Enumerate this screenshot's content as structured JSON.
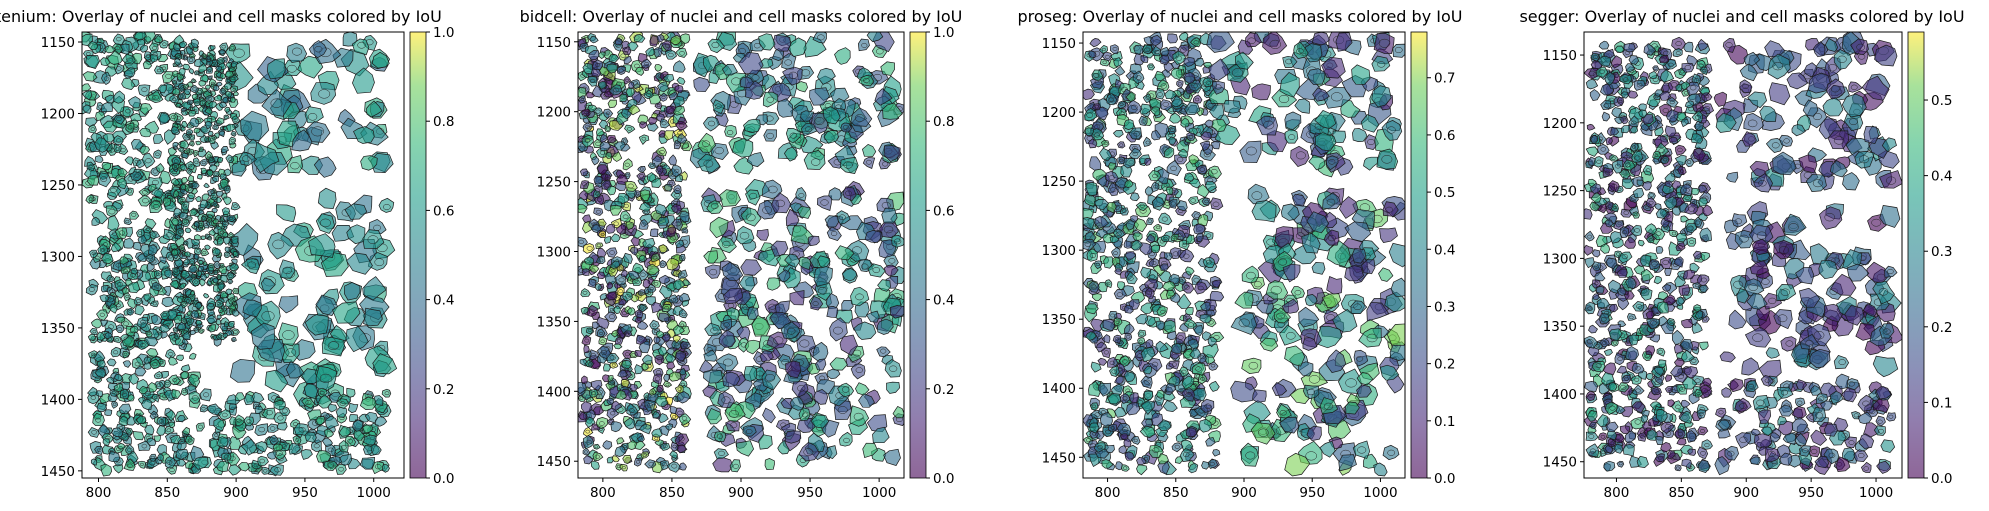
{
  "figure": {
    "description_note": "Four spatial overlay panels of nuclei and cell masks colored by IoU"
  },
  "chart_data": [
    {
      "type": "scatter",
      "method": "xenium",
      "title": "xenium: Overlay of nuclei and cell masks colored by IoU",
      "xlim": [
        788,
        1022
      ],
      "ylim": [
        1455,
        1143
      ],
      "xticks": [
        800,
        850,
        900,
        950,
        1000
      ],
      "yticks": [
        1150,
        1200,
        1250,
        1300,
        1350,
        1400,
        1450
      ],
      "colorbar": {
        "vmin": 0.0,
        "vmax": 1.0,
        "ticks": [
          0.0,
          0.2,
          0.4,
          0.6,
          0.8,
          1.0
        ],
        "labels": [
          "0.0",
          "0.2",
          "0.4",
          "0.6",
          "0.8",
          "1.0"
        ]
      },
      "regions": [
        {
          "x": [
            790,
            860
          ],
          "y": [
            1145,
            1290
          ],
          "iou": [
            0.5,
            0.75
          ],
          "size": 4
        },
        {
          "x": [
            795,
            870
          ],
          "y": [
            1290,
            1450
          ],
          "iou": [
            0.45,
            0.75
          ],
          "size": 3.5
        },
        {
          "x": [
            900,
            1010
          ],
          "y": [
            1145,
            1240
          ],
          "iou": [
            0.35,
            0.7
          ],
          "size": 8
        },
        {
          "x": [
            905,
            1010
          ],
          "y": [
            1260,
            1400
          ],
          "iou": [
            0.4,
            0.7
          ],
          "size": 8
        },
        {
          "x": [
            870,
            1010
          ],
          "y": [
            1395,
            1450
          ],
          "iou": [
            0.45,
            0.75
          ],
          "size": 4
        },
        {
          "x": [
            855,
            900
          ],
          "y": [
            1150,
            1360
          ],
          "iou": [
            0.45,
            0.75
          ],
          "size": 2.5
        }
      ]
    },
    {
      "type": "scatter",
      "method": "bidcell",
      "title": "bidcell: Overlay of nuclei and cell masks colored by IoU",
      "xlim": [
        782,
        1018
      ],
      "ylim": [
        1462,
        1143
      ],
      "xticks": [
        800,
        850,
        900,
        950,
        1000
      ],
      "yticks": [
        1150,
        1200,
        1250,
        1300,
        1350,
        1400,
        1450
      ],
      "colorbar": {
        "vmin": 0.0,
        "vmax": 1.0,
        "ticks": [
          0.0,
          0.2,
          0.4,
          0.6,
          0.8,
          1.0
        ],
        "labels": [
          "0.0",
          "0.2",
          "0.4",
          "0.6",
          "0.8",
          "1.0"
        ]
      },
      "regions": [
        {
          "x": [
            784,
            860
          ],
          "y": [
            1145,
            1455
          ],
          "iou": [
            0.0,
            1.0
          ],
          "size": 3.5
        },
        {
          "x": [
            870,
            1015
          ],
          "y": [
            1145,
            1240
          ],
          "iou": [
            0.2,
            0.8
          ],
          "size": 6
        },
        {
          "x": [
            875,
            1015
          ],
          "y": [
            1255,
            1455
          ],
          "iou": [
            0.1,
            0.8
          ],
          "size": 6
        }
      ]
    },
    {
      "type": "scatter",
      "method": "proseg",
      "title": "proseg: Overlay of nuclei and cell masks colored by IoU",
      "xlim": [
        782,
        1018
      ],
      "ylim": [
        1465,
        1142
      ],
      "xticks": [
        800,
        850,
        900,
        950,
        1000
      ],
      "yticks": [
        1150,
        1200,
        1250,
        1300,
        1350,
        1400,
        1450
      ],
      "colorbar": {
        "vmin": 0.0,
        "vmax": 0.78,
        "ticks": [
          0.0,
          0.1,
          0.2,
          0.3,
          0.4,
          0.5,
          0.6,
          0.7
        ],
        "labels": [
          "0.0",
          "0.1",
          "0.2",
          "0.3",
          "0.4",
          "0.5",
          "0.6",
          "0.7"
        ]
      },
      "regions": [
        {
          "x": [
            785,
            880
          ],
          "y": [
            1145,
            1460
          ],
          "iou": [
            0.1,
            0.65
          ],
          "size": 4
        },
        {
          "x": [
            880,
            1015
          ],
          "y": [
            1145,
            1245
          ],
          "iou": [
            0.05,
            0.6
          ],
          "size": 7
        },
        {
          "x": [
            900,
            1015
          ],
          "y": [
            1260,
            1460
          ],
          "iou": [
            0.05,
            0.7
          ],
          "size": 7
        }
      ]
    },
    {
      "type": "scatter",
      "method": "segger",
      "title": "segger: Overlay of nuclei and cell masks colored by IoU",
      "xlim": [
        775,
        1020
      ],
      "ylim": [
        1462,
        1133
      ],
      "xticks": [
        800,
        850,
        900,
        950,
        1000
      ],
      "yticks": [
        1150,
        1200,
        1250,
        1300,
        1350,
        1400,
        1450
      ],
      "colorbar": {
        "vmin": 0.0,
        "vmax": 0.59,
        "ticks": [
          0.0,
          0.1,
          0.2,
          0.3,
          0.4,
          0.5
        ],
        "labels": [
          "0.0",
          "0.1",
          "0.2",
          "0.3",
          "0.4",
          "0.5"
        ]
      },
      "regions": [
        {
          "x": [
            778,
            870
          ],
          "y": [
            1140,
            1455
          ],
          "iou": [
            0.0,
            0.45
          ],
          "size": 4
        },
        {
          "x": [
            880,
            1012
          ],
          "y": [
            1140,
            1245
          ],
          "iou": [
            0.0,
            0.35
          ],
          "size": 7
        },
        {
          "x": [
            885,
            1012
          ],
          "y": [
            1265,
            1385
          ],
          "iou": [
            0.0,
            0.35
          ],
          "size": 7
        },
        {
          "x": [
            880,
            1012
          ],
          "y": [
            1390,
            1455
          ],
          "iou": [
            0.0,
            0.35
          ],
          "size": 5
        }
      ]
    }
  ]
}
